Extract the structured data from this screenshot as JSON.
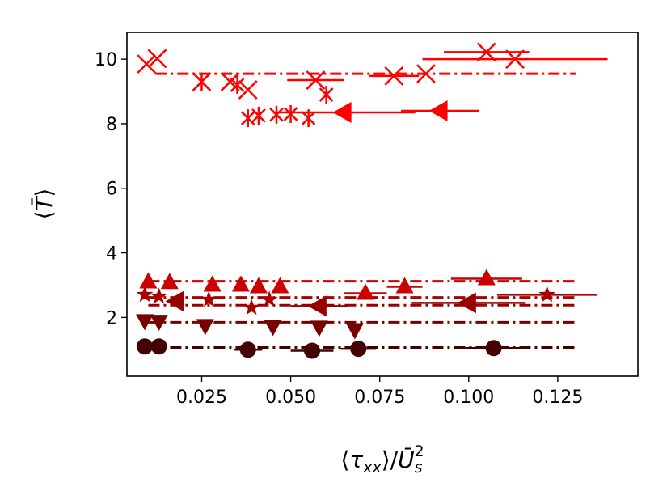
{
  "chart_data": {
    "type": "scatter",
    "xlabel": "⟨τ_xx⟩/Ū_s²",
    "ylabel": "⟨T̄⟩",
    "xlim": [
      0.004,
      0.1475
    ],
    "ylim": [
      0.18,
      10.83
    ],
    "xticks": [
      0.025,
      0.05,
      0.075,
      0.1,
      0.125
    ],
    "xtick_labels": [
      "0.025",
      "0.050",
      "0.075",
      "0.100",
      "0.125"
    ],
    "yticks": [
      2,
      4,
      6,
      8,
      10
    ],
    "ytick_labels": [
      "2",
      "4",
      "6",
      "8",
      "10"
    ],
    "grid": false,
    "reference_lines": [
      {
        "y": 9.55,
        "x": [
          0.012,
          0.13
        ],
        "color": "#ff0000",
        "style": "dashdot"
      },
      {
        "y": 3.12,
        "x": [
          0.01,
          0.13
        ],
        "color": "#cc0000",
        "style": "dashdot"
      },
      {
        "y": 2.62,
        "x": [
          0.01,
          0.13
        ],
        "color": "#aa0000",
        "style": "dashdot"
      },
      {
        "y": 2.38,
        "x": [
          0.01,
          0.13
        ],
        "color": "#990000",
        "style": "dashdot"
      },
      {
        "y": 1.85,
        "x": [
          0.01,
          0.13
        ],
        "color": "#770000",
        "style": "dashdot"
      },
      {
        "y": 1.07,
        "x": [
          0.01,
          0.13
        ],
        "color": "#440000",
        "style": "dashdot"
      }
    ],
    "series": [
      {
        "marker": "x",
        "color": "#ff0000",
        "points": [
          {
            "x": 0.0095,
            "y": 9.85,
            "xerr": 0.0
          },
          {
            "x": 0.0125,
            "y": 10.02,
            "xerr": 0.0
          },
          {
            "x": 0.025,
            "y": 9.3,
            "xerr": 0.0
          },
          {
            "x": 0.033,
            "y": 9.3,
            "xerr": 0.0
          },
          {
            "x": 0.038,
            "y": 9.05,
            "xerr": 0.0
          },
          {
            "x": 0.057,
            "y": 9.35,
            "xerr": 0.008
          },
          {
            "x": 0.079,
            "y": 9.48,
            "xerr": 0.007
          },
          {
            "x": 0.088,
            "y": 9.55,
            "xerr": 0.0
          },
          {
            "x": 0.105,
            "y": 10.22,
            "xerr": 0.012
          },
          {
            "x": 0.113,
            "y": 10.0,
            "xerr": 0.026
          }
        ]
      },
      {
        "marker": "asterisk",
        "color": "#ff0000",
        "points": [
          {
            "x": 0.025,
            "y": 9.3,
            "xerr": 0.0
          },
          {
            "x": 0.035,
            "y": 9.2,
            "xerr": 0.0
          },
          {
            "x": 0.041,
            "y": 8.25,
            "xerr": 0.0
          },
          {
            "x": 0.046,
            "y": 8.28,
            "xerr": 0.0
          },
          {
            "x": 0.05,
            "y": 8.3,
            "xerr": 0.0
          },
          {
            "x": 0.055,
            "y": 8.17,
            "xerr": 0.0
          },
          {
            "x": 0.06,
            "y": 8.9,
            "xerr": 0.0
          },
          {
            "x": 0.038,
            "y": 8.17,
            "xerr": 0.0
          }
        ]
      },
      {
        "marker": "triangle-left",
        "color": "#ff0000",
        "points": [
          {
            "x": 0.065,
            "y": 8.35,
            "xerr": 0.02
          },
          {
            "x": 0.092,
            "y": 8.4,
            "xerr": 0.011
          }
        ]
      },
      {
        "marker": "triangle-up",
        "color": "#cc0000",
        "points": [
          {
            "x": 0.01,
            "y": 3.1,
            "xerr": 0.0
          },
          {
            "x": 0.016,
            "y": 3.08,
            "xerr": 0.0
          },
          {
            "x": 0.028,
            "y": 3.0,
            "xerr": 0.0
          },
          {
            "x": 0.036,
            "y": 3.0,
            "xerr": 0.0
          },
          {
            "x": 0.041,
            "y": 2.95,
            "xerr": 0.0
          },
          {
            "x": 0.047,
            "y": 2.95,
            "xerr": 0.0
          },
          {
            "x": 0.071,
            "y": 2.75,
            "xerr": 0.006
          },
          {
            "x": 0.082,
            "y": 2.95,
            "xerr": 0.005
          },
          {
            "x": 0.105,
            "y": 3.2,
            "xerr": 0.01
          }
        ]
      },
      {
        "marker": "star",
        "color": "#aa0000",
        "points": [
          {
            "x": 0.009,
            "y": 2.7,
            "xerr": 0.0
          },
          {
            "x": 0.013,
            "y": 2.65,
            "xerr": 0.0
          },
          {
            "x": 0.027,
            "y": 2.55,
            "xerr": 0.0
          },
          {
            "x": 0.039,
            "y": 2.3,
            "xerr": 0.0
          },
          {
            "x": 0.044,
            "y": 2.55,
            "xerr": 0.0
          },
          {
            "x": 0.122,
            "y": 2.7,
            "xerr": 0.014
          }
        ]
      },
      {
        "marker": "triangle-left",
        "color": "#990000",
        "points": [
          {
            "x": 0.018,
            "y": 2.5,
            "xerr": 0.0
          },
          {
            "x": 0.058,
            "y": 2.35,
            "xerr": 0.008
          },
          {
            "x": 0.1,
            "y": 2.45,
            "xerr": 0.016
          }
        ]
      },
      {
        "marker": "triangle-down",
        "color": "#770000",
        "points": [
          {
            "x": 0.009,
            "y": 1.9,
            "xerr": 0.0
          },
          {
            "x": 0.013,
            "y": 1.88,
            "xerr": 0.0
          },
          {
            "x": 0.026,
            "y": 1.75,
            "xerr": 0.0
          },
          {
            "x": 0.045,
            "y": 1.72,
            "xerr": 0.0
          },
          {
            "x": 0.058,
            "y": 1.7,
            "xerr": 0.0
          },
          {
            "x": 0.068,
            "y": 1.62,
            "xerr": 0.0
          }
        ]
      },
      {
        "marker": "circle",
        "color": "#440000",
        "points": [
          {
            "x": 0.009,
            "y": 1.1,
            "xerr": 0.0
          },
          {
            "x": 0.013,
            "y": 1.1,
            "xerr": 0.0
          },
          {
            "x": 0.038,
            "y": 1.0,
            "xerr": 0.004
          },
          {
            "x": 0.056,
            "y": 0.97,
            "xerr": 0.006
          },
          {
            "x": 0.069,
            "y": 1.03,
            "xerr": 0.005
          },
          {
            "x": 0.107,
            "y": 1.05,
            "xerr": 0.008
          }
        ]
      }
    ]
  }
}
